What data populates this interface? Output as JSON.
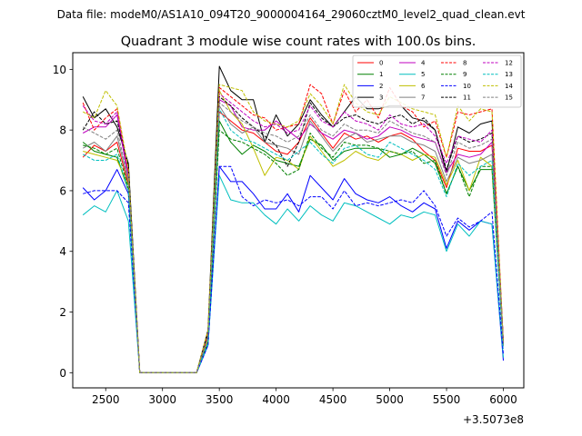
{
  "suptitle": "Data file: modeM0/AS1A10_094T20_9000004164_29060cztM0_level2_quad_clean.evt",
  "title": "Quadrant 3 module wise count rates with 100.0s bins.",
  "offset_label": "+3.5073e8",
  "x_ticks": [
    2500,
    3000,
    3500,
    4000,
    4500,
    5000,
    5500,
    6000
  ],
  "y_ticks": [
    0,
    2,
    4,
    6,
    8,
    10
  ],
  "chart_data": {
    "type": "line",
    "title": "Quadrant 3 module wise count rates with 100.0s bins.",
    "xlabel": "",
    "ylabel": "",
    "x_offset": 350730000,
    "xlim": [
      2210,
      6180
    ],
    "ylim": [
      -0.5,
      10.55
    ],
    "legend_placement": "top-right",
    "grid": false,
    "x": [
      2300,
      2400,
      2500,
      2600,
      2700,
      2800,
      2900,
      3000,
      3100,
      3200,
      3300,
      3400,
      3500,
      3600,
      3700,
      3800,
      3900,
      4000,
      4100,
      4200,
      4300,
      4400,
      4500,
      4600,
      4700,
      4800,
      4900,
      5000,
      5100,
      5200,
      5300,
      5400,
      5500,
      5600,
      5700,
      5800,
      5900,
      6000
    ],
    "series": [
      {
        "name": "0",
        "color": "#ff0000",
        "dash": false,
        "values": [
          7.1,
          7.5,
          7.3,
          7.6,
          6.2,
          0,
          0,
          0,
          0,
          0,
          0,
          1.1,
          8.6,
          8.3,
          8.0,
          7.9,
          7.6,
          7.3,
          7.2,
          7.6,
          8.4,
          7.9,
          7.4,
          7.9,
          7.7,
          7.8,
          7.6,
          7.8,
          7.9,
          7.7,
          7.3,
          7.0,
          6.1,
          7.4,
          7.3,
          7.3,
          7.5,
          0.9
        ]
      },
      {
        "name": "1",
        "color": "#008000",
        "dash": false,
        "values": [
          7.6,
          7.3,
          7.2,
          7.1,
          6.0,
          0,
          0,
          0,
          0,
          0,
          0,
          1.0,
          8.3,
          7.6,
          7.2,
          7.5,
          7.3,
          7.0,
          6.9,
          6.8,
          7.7,
          7.5,
          7.0,
          7.3,
          7.4,
          7.4,
          7.4,
          7.1,
          7.2,
          7.4,
          7.2,
          6.9,
          5.9,
          6.8,
          6.0,
          6.7,
          6.7,
          0.9
        ]
      },
      {
        "name": "2",
        "color": "#0000ff",
        "dash": false,
        "values": [
          6.1,
          5.7,
          6.0,
          6.7,
          5.9,
          0,
          0,
          0,
          0,
          0,
          0,
          0.9,
          6.8,
          6.3,
          6.3,
          5.9,
          5.4,
          5.4,
          5.9,
          5.3,
          6.5,
          6.1,
          5.7,
          6.4,
          5.9,
          5.7,
          5.6,
          5.8,
          5.5,
          5.3,
          5.6,
          5.4,
          4.1,
          5.0,
          4.7,
          5.0,
          4.9,
          0.4
        ]
      },
      {
        "name": "3",
        "color": "#000000",
        "dash": false,
        "values": [
          9.1,
          8.4,
          8.7,
          8.1,
          6.9,
          0,
          0,
          0,
          0,
          0,
          0,
          1.4,
          10.1,
          9.3,
          9.0,
          9.0,
          7.6,
          8.5,
          7.8,
          8.2,
          9.0,
          8.5,
          8.1,
          8.6,
          9.1,
          8.7,
          8.7,
          8.8,
          8.8,
          8.4,
          8.3,
          8.0,
          6.6,
          8.1,
          7.9,
          8.2,
          8.3,
          1.0
        ]
      },
      {
        "name": "4",
        "color": "#bf00bf",
        "dash": false,
        "values": [
          7.9,
          8.1,
          8.1,
          8.5,
          6.4,
          0,
          0,
          0,
          0,
          0,
          0,
          1.2,
          9.0,
          8.8,
          8.1,
          8.0,
          8.0,
          8.3,
          8.0,
          7.7,
          8.2,
          7.9,
          7.7,
          8.0,
          7.9,
          7.7,
          7.8,
          8.1,
          8.0,
          7.8,
          7.7,
          7.6,
          6.6,
          7.2,
          7.1,
          7.2,
          7.6,
          1.0
        ]
      },
      {
        "name": "5",
        "color": "#00bfbf",
        "dash": false,
        "values": [
          5.2,
          5.5,
          5.3,
          6.0,
          5.0,
          0,
          0,
          0,
          0,
          0,
          0,
          0.9,
          6.5,
          5.7,
          5.6,
          5.6,
          5.2,
          4.9,
          5.4,
          5.0,
          5.5,
          5.2,
          5.0,
          5.6,
          5.5,
          5.3,
          5.1,
          4.9,
          5.2,
          5.1,
          5.3,
          5.2,
          4.0,
          4.9,
          4.5,
          5.0,
          4.9,
          0.5
        ]
      },
      {
        "name": "6",
        "color": "#bfbf00",
        "dash": false,
        "values": [
          7.3,
          7.2,
          7.1,
          7.0,
          6.2,
          0,
          0,
          0,
          0,
          0,
          0,
          1.1,
          9.3,
          8.6,
          8.2,
          7.4,
          6.5,
          7.1,
          7.0,
          6.7,
          7.8,
          7.3,
          6.8,
          7.0,
          7.3,
          7.1,
          7.0,
          7.3,
          7.2,
          7.0,
          7.2,
          7.1,
          6.2,
          7.0,
          6.0,
          7.1,
          6.8,
          0.9
        ]
      },
      {
        "name": "7",
        "color": "#808080",
        "dash": false,
        "values": [
          7.4,
          7.6,
          7.3,
          7.8,
          6.3,
          0,
          0,
          0,
          0,
          0,
          0,
          1.2,
          8.8,
          8.2,
          7.9,
          8.1,
          7.6,
          7.5,
          7.4,
          7.2,
          8.3,
          7.8,
          7.3,
          7.7,
          7.9,
          7.6,
          7.7,
          7.8,
          7.8,
          7.6,
          7.5,
          7.3,
          6.3,
          7.1,
          6.9,
          7.0,
          7.2,
          0.9
        ]
      },
      {
        "name": "8",
        "color": "#ff0000",
        "dash": true,
        "values": [
          8.9,
          8.0,
          8.4,
          8.7,
          6.6,
          0,
          0,
          0,
          0,
          0,
          0,
          1.3,
          9.4,
          9.1,
          8.8,
          8.5,
          8.4,
          8.0,
          8.1,
          8.2,
          9.5,
          9.2,
          8.2,
          9.3,
          8.6,
          9.0,
          8.4,
          9.4,
          8.8,
          8.6,
          8.1,
          8.3,
          7.1,
          8.6,
          8.5,
          8.6,
          8.7,
          1.0
        ]
      },
      {
        "name": "9",
        "color": "#008000",
        "dash": true,
        "values": [
          7.5,
          7.4,
          7.2,
          7.4,
          6.1,
          0,
          0,
          0,
          0,
          0,
          0,
          1.0,
          8.0,
          7.7,
          7.6,
          7.4,
          7.2,
          6.9,
          6.5,
          6.7,
          7.9,
          7.4,
          7.1,
          7.6,
          7.5,
          7.5,
          7.4,
          7.3,
          7.2,
          7.3,
          6.9,
          7.0,
          5.9,
          6.8,
          5.8,
          6.8,
          6.8,
          0.9
        ]
      },
      {
        "name": "10",
        "color": "#0000ff",
        "dash": true,
        "values": [
          5.9,
          6.0,
          6.0,
          6.0,
          5.6,
          0,
          0,
          0,
          0,
          0,
          0,
          0.9,
          6.8,
          6.8,
          5.8,
          5.5,
          5.7,
          5.6,
          5.7,
          5.5,
          5.8,
          5.8,
          5.4,
          6.0,
          5.5,
          5.6,
          5.5,
          5.6,
          5.7,
          5.6,
          6.0,
          5.5,
          4.5,
          5.1,
          4.8,
          5.0,
          5.3,
          0.6
        ]
      },
      {
        "name": "11",
        "color": "#000000",
        "dash": true,
        "values": [
          8.0,
          8.6,
          8.2,
          8.3,
          6.8,
          0,
          0,
          0,
          0,
          0,
          0,
          1.3,
          9.1,
          8.8,
          8.4,
          8.1,
          7.8,
          7.5,
          6.8,
          7.6,
          8.9,
          8.4,
          8.1,
          8.4,
          8.5,
          8.3,
          8.2,
          8.4,
          8.5,
          8.2,
          8.4,
          8.0,
          6.7,
          7.8,
          7.6,
          7.7,
          7.9,
          1.0
        ]
      },
      {
        "name": "12",
        "color": "#bf00bf",
        "dash": true,
        "values": [
          8.8,
          8.3,
          8.2,
          8.6,
          6.5,
          0,
          0,
          0,
          0,
          0,
          0,
          1.2,
          9.2,
          8.9,
          8.6,
          8.3,
          8.1,
          8.2,
          7.9,
          8.0,
          8.8,
          8.3,
          8.1,
          8.6,
          8.3,
          8.2,
          8.0,
          8.5,
          8.2,
          8.1,
          8.2,
          7.8,
          6.9,
          7.8,
          7.7,
          7.6,
          8.0,
          1.0
        ]
      },
      {
        "name": "13",
        "color": "#00bfbf",
        "dash": true,
        "values": [
          7.2,
          7.0,
          7.0,
          7.2,
          6.0,
          0,
          0,
          0,
          0,
          0,
          0,
          1.0,
          8.7,
          8.0,
          7.7,
          7.6,
          7.4,
          7.2,
          7.0,
          7.3,
          7.6,
          7.2,
          6.9,
          7.4,
          7.5,
          7.2,
          7.1,
          7.6,
          7.4,
          7.2,
          7.0,
          6.7,
          5.8,
          6.9,
          6.5,
          6.8,
          7.0,
          0.8
        ]
      },
      {
        "name": "14",
        "color": "#bfbf00",
        "dash": true,
        "values": [
          8.6,
          8.4,
          9.3,
          8.8,
          6.7,
          0,
          0,
          0,
          0,
          0,
          0,
          1.4,
          9.5,
          9.4,
          9.3,
          8.6,
          8.3,
          8.2,
          8.1,
          8.3,
          9.2,
          8.8,
          8.2,
          9.5,
          8.9,
          8.6,
          8.5,
          9.1,
          8.9,
          8.7,
          8.6,
          8.5,
          7.1,
          8.8,
          8.3,
          8.7,
          8.6,
          1.0
        ]
      },
      {
        "name": "15",
        "color": "#808080",
        "dash": true,
        "values": [
          8.1,
          7.9,
          7.7,
          8.0,
          6.4,
          0,
          0,
          0,
          0,
          0,
          0,
          1.2,
          8.9,
          8.6,
          8.3,
          8.1,
          7.9,
          7.8,
          7.6,
          7.8,
          8.5,
          8.0,
          7.8,
          8.2,
          8.0,
          8.0,
          7.9,
          8.3,
          8.1,
          7.9,
          7.8,
          7.6,
          6.5,
          7.6,
          7.4,
          7.5,
          7.7,
          0.9
        ]
      }
    ]
  }
}
